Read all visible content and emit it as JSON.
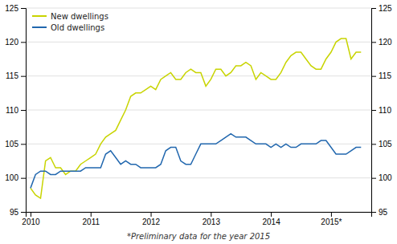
{
  "chart_data": {
    "type": "line",
    "x": [
      2010.0,
      2010.083,
      2010.167,
      2010.25,
      2010.333,
      2010.417,
      2010.5,
      2010.583,
      2010.667,
      2010.75,
      2010.833,
      2010.917,
      2011.0,
      2011.083,
      2011.167,
      2011.25,
      2011.333,
      2011.417,
      2011.5,
      2011.583,
      2011.667,
      2011.75,
      2011.833,
      2011.917,
      2012.0,
      2012.083,
      2012.167,
      2012.25,
      2012.333,
      2012.417,
      2012.5,
      2012.583,
      2012.667,
      2012.75,
      2012.833,
      2012.917,
      2013.0,
      2013.083,
      2013.167,
      2013.25,
      2013.333,
      2013.417,
      2013.5,
      2013.583,
      2013.667,
      2013.75,
      2013.833,
      2013.917,
      2014.0,
      2014.083,
      2014.167,
      2014.25,
      2014.333,
      2014.417,
      2014.5,
      2014.583,
      2014.667,
      2014.75,
      2014.833,
      2014.917,
      2015.0,
      2015.083,
      2015.167,
      2015.25,
      2015.333,
      2015.417,
      2015.5
    ],
    "series": [
      {
        "name": "New dwellings",
        "color": "#c8d400",
        "values": [
          98.5,
          97.5,
          97.0,
          102.5,
          103.0,
          101.5,
          101.5,
          100.5,
          101.0,
          101.0,
          102.0,
          102.5,
          103.0,
          103.5,
          105.0,
          106.0,
          106.5,
          107.0,
          108.5,
          110.0,
          112.0,
          112.5,
          112.5,
          113.0,
          113.5,
          113.0,
          114.5,
          115.0,
          115.5,
          114.5,
          114.5,
          115.5,
          116.0,
          115.5,
          115.5,
          113.5,
          114.5,
          116.0,
          116.0,
          115.0,
          115.5,
          116.5,
          116.5,
          117.0,
          116.5,
          114.5,
          115.5,
          115.0,
          114.5,
          114.5,
          115.5,
          117.0,
          118.0,
          118.5,
          118.5,
          117.5,
          116.5,
          116.0,
          116.0,
          117.5,
          118.5,
          120.0,
          120.5,
          120.5,
          117.5,
          118.5,
          118.5
        ]
      },
      {
        "name": "Old dwellings",
        "color": "#2167ae",
        "values": [
          98.5,
          100.5,
          101.0,
          101.0,
          100.5,
          100.5,
          101.0,
          101.0,
          101.0,
          101.0,
          101.0,
          101.5,
          101.5,
          101.5,
          101.5,
          103.5,
          104.0,
          103.0,
          102.0,
          102.5,
          102.0,
          102.0,
          101.5,
          101.5,
          101.5,
          101.5,
          102.0,
          104.0,
          104.5,
          104.5,
          102.5,
          102.0,
          102.0,
          103.5,
          105.0,
          105.0,
          105.0,
          105.0,
          105.5,
          106.0,
          106.5,
          106.0,
          106.0,
          106.0,
          105.5,
          105.0,
          105.0,
          105.0,
          104.5,
          105.0,
          104.5,
          105.0,
          104.5,
          104.5,
          105.0,
          105.0,
          105.0,
          105.0,
          105.5,
          105.5,
          104.5,
          103.5,
          103.5,
          103.5,
          104.0,
          104.5,
          104.5
        ]
      }
    ],
    "xlim": [
      2009.92,
      2015.67
    ],
    "xticks": [
      2010,
      2011,
      2012,
      2013,
      2014,
      {
        "value": 2015,
        "label": "2015*"
      }
    ],
    "ylim": [
      95,
      125
    ],
    "yticks": [
      95,
      100,
      105,
      110,
      115,
      120,
      125
    ],
    "y2lim": [
      95,
      125
    ],
    "y2ticks": [
      95,
      100,
      105,
      110,
      115,
      120,
      125
    ],
    "grid": true,
    "legend": "upper left",
    "annotations": [
      "*Preliminary data for the year 2015"
    ]
  }
}
